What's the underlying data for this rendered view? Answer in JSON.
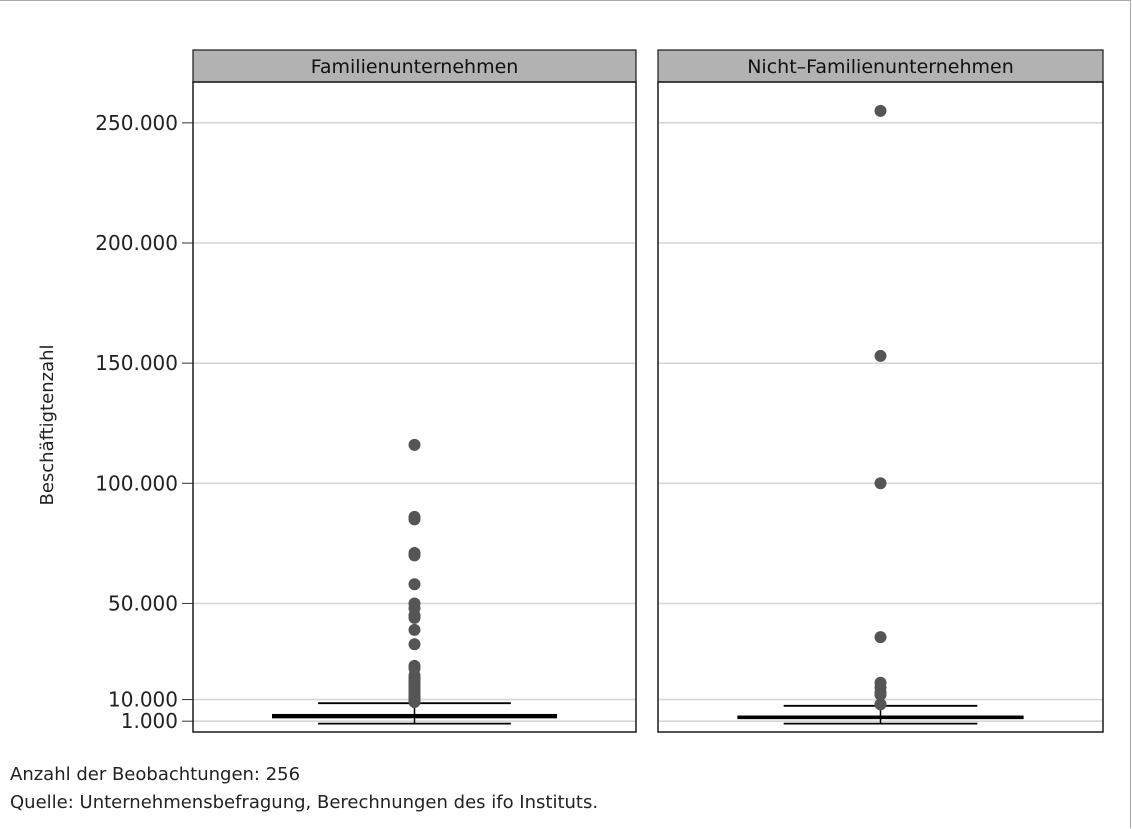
{
  "chart_data": {
    "type": "boxplot",
    "ylabel": "Beschäftigtenzahl",
    "ylim": [
      -3500,
      267000
    ],
    "yticks": [
      1000,
      10000,
      50000,
      100000,
      150000,
      200000,
      250000
    ],
    "ytick_labels": [
      "1.000",
      "10.000",
      "50.000",
      "100.000",
      "150.000",
      "200.000",
      "250.000"
    ],
    "grid": true,
    "colors": {
      "points": "#555555",
      "strip": "#b2b2b2",
      "grid": "#d6d6d6",
      "box": "#000000"
    },
    "panels": [
      {
        "title": "Familienunternehmen",
        "box": {
          "whisker_low": 0,
          "q1": 2500,
          "median": 3200,
          "q3": 3700,
          "whisker_high": 8500
        },
        "outliers": [
          116000,
          86000,
          85000,
          71000,
          70000,
          58000,
          50000,
          48000,
          45000,
          44000,
          39000,
          33000,
          24000,
          23000,
          20000,
          19000,
          18000,
          17000,
          16000,
          15000,
          14000,
          13000,
          12000,
          11000,
          10000,
          9500,
          9000
        ]
      },
      {
        "title": "Nicht–Familienunternehmen",
        "box": {
          "whisker_low": 0,
          "q1": 2500,
          "median": 2700,
          "q3": 3000,
          "whisker_high": 7400
        },
        "outliers": [
          255000,
          153000,
          100000,
          36000,
          17000,
          15000,
          13000,
          12000,
          8000
        ]
      }
    ]
  },
  "notes": {
    "observations": "Anzahl der Beobachtungen: 256",
    "source": "Quelle: Unternehmensbefragung, Berechnungen des ifo Instituts."
  }
}
